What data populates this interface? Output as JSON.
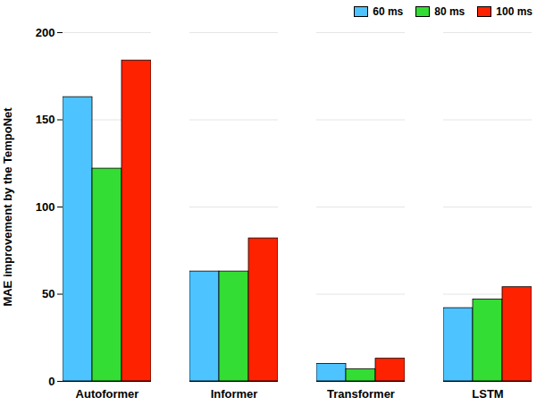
{
  "chart_data": {
    "type": "bar",
    "categories": [
      "Autoformer",
      "Informer",
      "Transformer",
      "LSTM"
    ],
    "series": [
      {
        "name": "60 ms",
        "color": "#4DC3FF",
        "values": [
          163,
          63,
          10,
          42
        ]
      },
      {
        "name": "80 ms",
        "color": "#33DD33",
        "values": [
          122,
          63,
          7,
          47
        ]
      },
      {
        "name": "100 ms",
        "color": "#FF2200",
        "values": [
          184,
          82,
          13,
          54
        ]
      }
    ],
    "ylabel": "MAE improvement by the TempoNet",
    "ylim": [
      0,
      200
    ],
    "yticks": [
      0,
      50,
      100,
      150,
      200
    ],
    "grid": true,
    "legend": "upper right"
  }
}
